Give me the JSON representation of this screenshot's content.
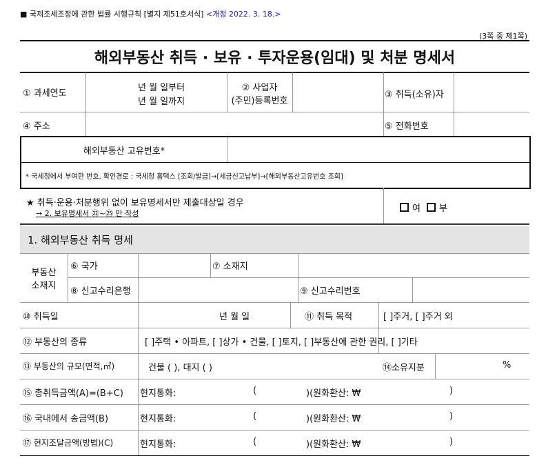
{
  "header": {
    "law": "■ 국제조세조정에 관한 법률 시행규칙 [별지 제51호서식]",
    "revision": "<개정 2022. 3. 18.>",
    "revision_color": "#1a1adf",
    "page": "(3쪽 중 제1쪽)",
    "title": "해외부동산 취득 · 보유 · 투자운용(임대) 및 처분 명세서"
  },
  "top": {
    "tax_year": "① 과세연도",
    "from": "년     월     일부터",
    "to": "년     월     일까지",
    "reg_no_1": "② 사업자",
    "reg_no_2": "(주민)등록번호",
    "acquirer": "③ 취득(소유)자",
    "address": "④ 주소",
    "phone": "⑤ 전화번호"
  },
  "unique": {
    "label": "해외부동산 고유번호*",
    "note": "* 국세청에서 부여한 번호, 확인경로 : 국세청 홈택스 [조회/발급]→[세금신고납부]→[해외부동산고유번호 조회]"
  },
  "star": {
    "line1": "★ 취득·운용·처분행위 없이 보유명세서만 제출대상일 경우",
    "line2": "→ 2. 보유명세서 ㉒~㉕ 만 작성",
    "yes": "여",
    "no": "부"
  },
  "section1": {
    "title": "1. 해외부동산 취득 명세",
    "location": "부동산\n소재지",
    "country": "⑥ 국가",
    "address": "⑦ 소재지",
    "bank": "⑧ 신고수리은행",
    "report_no": "⑨ 신고수리번호",
    "acq_date": "⑩ 취득일",
    "acq_date_value": "년       월       일",
    "purpose": "⑪ 취득 목적",
    "purpose_options": "[    ]주거,   [    ]주거 외",
    "type": "⑫ 부동산의 종류",
    "type_options": "[    ]주택 • 아파트,  [    ]상가 • 건물,  [    ]토지,  [    ]부동산에 관한 권리,  [    ]기타",
    "scale": "⑬ 부동산의 규모(면적,㎡)",
    "scale_value": "건물 (                ),  대지 (                )",
    "share": "⑭소유지분",
    "share_unit": "%",
    "amounts": [
      {
        "label": "⑮ 총취득금액(A)=(B+C)",
        "local": "현지통화:",
        "open": "(",
        "krw": ")(원화환산:  ₩",
        "close": ")"
      },
      {
        "label": "⑯ 국내에서 송금액(B)",
        "local": "현지통화:",
        "open": "(",
        "krw": ")(원화환산:  ₩",
        "close": ")"
      },
      {
        "label": "⑰ 현지조달금액(방법)(C)",
        "local": "현지통화:",
        "open": "(",
        "krw": ")(원화환산:  ₩",
        "close": ")"
      }
    ]
  }
}
